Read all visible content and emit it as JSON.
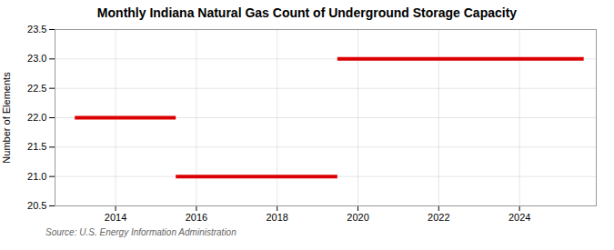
{
  "chart_data": {
    "type": "segments",
    "title": "Monthly Indiana Natural Gas Count of Underground Storage Capacity",
    "ylabel": "Number of Elements",
    "source": "Source: U.S. Energy Information Administration",
    "color": "#dd0000",
    "segments": [
      {
        "x_start": 2013.0,
        "x_end": 2015.5,
        "y": 22
      },
      {
        "x_start": 2015.5,
        "x_end": 2019.5,
        "y": 21
      },
      {
        "x_start": 2019.5,
        "x_end": 2025.6,
        "y": 23
      }
    ],
    "xlim": [
      2012.5,
      2025.9
    ],
    "ylim": [
      20.5,
      23.5
    ],
    "xticks": [
      2014,
      2016,
      2018,
      2020,
      2022,
      2024
    ],
    "yticks": [
      20.5,
      {
        "value": 21,
        "label": "21.0"
      },
      21.5,
      {
        "value": 22,
        "label": "22.0"
      },
      22.5,
      {
        "value": 23,
        "label": "23.0"
      },
      23.5
    ],
    "grid": true
  }
}
